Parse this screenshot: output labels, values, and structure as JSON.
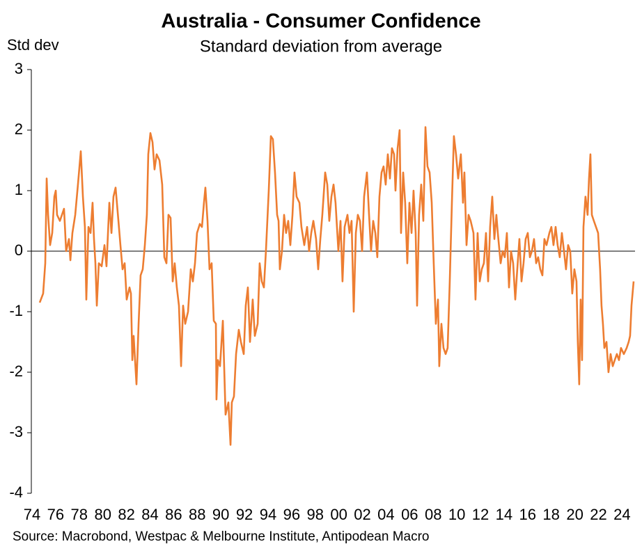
{
  "chart_data": {
    "type": "line",
    "title": "Australia - Consumer Confidence",
    "subtitle": "Standard deviation from average",
    "y_label": "Std dev",
    "source": "Source: Macrobond, Westpac & Melbourne Institute, Antipodean Macro",
    "xlim": [
      1973.94,
      2025.1
    ],
    "ylim": [
      -4,
      3
    ],
    "yticks": [
      -4,
      -3,
      -2,
      -1,
      0,
      1,
      2,
      3
    ],
    "xticks": [
      {
        "value": 1974,
        "label": "74"
      },
      {
        "value": 1976,
        "label": "76"
      },
      {
        "value": 1978,
        "label": "78"
      },
      {
        "value": 1980,
        "label": "80"
      },
      {
        "value": 1982,
        "label": "82"
      },
      {
        "value": 1984,
        "label": "84"
      },
      {
        "value": 1986,
        "label": "86"
      },
      {
        "value": 1988,
        "label": "88"
      },
      {
        "value": 1990,
        "label": "90"
      },
      {
        "value": 1992,
        "label": "92"
      },
      {
        "value": 1994,
        "label": "94"
      },
      {
        "value": 1996,
        "label": "96"
      },
      {
        "value": 1998,
        "label": "98"
      },
      {
        "value": 2000,
        "label": "00"
      },
      {
        "value": 2002,
        "label": "02"
      },
      {
        "value": 2004,
        "label": "04"
      },
      {
        "value": 2006,
        "label": "06"
      },
      {
        "value": 2008,
        "label": "08"
      },
      {
        "value": 2010,
        "label": "10"
      },
      {
        "value": 2012,
        "label": "12"
      },
      {
        "value": 2014,
        "label": "14"
      },
      {
        "value": 2016,
        "label": "16"
      },
      {
        "value": 2018,
        "label": "18"
      },
      {
        "value": 2020,
        "label": "20"
      },
      {
        "value": 2022,
        "label": "22"
      },
      {
        "value": 2024,
        "label": "24"
      }
    ],
    "color": "#ed7d31",
    "x": [
      1974.65,
      1974.94,
      1975.12,
      1975.24,
      1975.36,
      1975.53,
      1975.71,
      1975.89,
      1976.01,
      1976.12,
      1976.36,
      1976.71,
      1976.89,
      1977.13,
      1977.25,
      1977.42,
      1977.66,
      1977.89,
      1978.13,
      1978.31,
      1978.48,
      1978.6,
      1978.78,
      1978.96,
      1979.13,
      1979.25,
      1979.37,
      1979.49,
      1979.66,
      1979.9,
      1980.14,
      1980.31,
      1980.55,
      1980.73,
      1980.9,
      1981.08,
      1981.32,
      1981.49,
      1981.67,
      1981.85,
      1982.02,
      1982.26,
      1982.38,
      1982.5,
      1982.61,
      1982.85,
      1983.03,
      1983.2,
      1983.38,
      1983.56,
      1983.73,
      1983.85,
      1984.03,
      1984.21,
      1984.38,
      1984.56,
      1984.8,
      1985.03,
      1985.21,
      1985.39,
      1985.56,
      1985.74,
      1985.92,
      1986.09,
      1986.27,
      1986.45,
      1986.63,
      1986.8,
      1986.98,
      1987.22,
      1987.45,
      1987.63,
      1987.81,
      1987.98,
      1988.22,
      1988.4,
      1988.57,
      1988.69,
      1988.87,
      1989.04,
      1989.22,
      1989.4,
      1989.58,
      1989.63,
      1989.75,
      1989.93,
      1990.17,
      1990.28,
      1990.4,
      1990.64,
      1990.82,
      1990.93,
      1991.11,
      1991.29,
      1991.52,
      1991.7,
      1991.94,
      1992.11,
      1992.29,
      1992.47,
      1992.7,
      1992.88,
      1993.12,
      1993.29,
      1993.47,
      1993.65,
      1993.82,
      1994.06,
      1994.24,
      1994.41,
      1994.59,
      1994.77,
      1994.89,
      1995.0,
      1995.18,
      1995.36,
      1995.53,
      1995.71,
      1995.89,
      1996.07,
      1996.24,
      1996.42,
      1996.66,
      1996.83,
      1997.07,
      1997.31,
      1997.48,
      1997.66,
      1997.84,
      1998.07,
      1998.25,
      1998.43,
      1998.6,
      1998.84,
      1999.02,
      1999.19,
      1999.37,
      1999.55,
      1999.72,
      1999.96,
      2000.14,
      2000.31,
      2000.49,
      2000.73,
      2000.9,
      2001.08,
      2001.26,
      2001.44,
      2001.61,
      2001.79,
      2001.97,
      2002.14,
      2002.38,
      2002.56,
      2002.73,
      2002.91,
      2003.09,
      2003.26,
      2003.44,
      2003.62,
      2003.79,
      2003.97,
      2004.15,
      2004.33,
      2004.5,
      2004.68,
      2004.8,
      2004.98,
      2005.15,
      2005.27,
      2005.45,
      2005.62,
      2005.8,
      2005.98,
      2006.16,
      2006.33,
      2006.51,
      2006.63,
      2006.8,
      2006.98,
      2007.16,
      2007.34,
      2007.51,
      2007.69,
      2007.87,
      2008.04,
      2008.22,
      2008.4,
      2008.51,
      2008.69,
      2008.87,
      2009.05,
      2009.22,
      2009.4,
      2009.58,
      2009.75,
      2009.93,
      2010.11,
      2010.34,
      2010.52,
      2010.64,
      2010.82,
      2010.99,
      2011.17,
      2011.41,
      2011.58,
      2011.76,
      2011.94,
      2012.11,
      2012.29,
      2012.47,
      2012.65,
      2012.82,
      2013.0,
      2013.18,
      2013.35,
      2013.47,
      2013.71,
      2013.88,
      2014.06,
      2014.24,
      2014.42,
      2014.59,
      2014.77,
      2014.95,
      2015.12,
      2015.3,
      2015.48,
      2015.65,
      2015.83,
      2016.01,
      2016.19,
      2016.36,
      2016.54,
      2016.72,
      2016.89,
      2017.07,
      2017.25,
      2017.42,
      2017.6,
      2017.84,
      2018.01,
      2018.19,
      2018.37,
      2018.54,
      2018.72,
      2018.9,
      2019.08,
      2019.25,
      2019.43,
      2019.61,
      2019.78,
      2019.96,
      2020.14,
      2020.25,
      2020.37,
      2020.49,
      2020.61,
      2020.73,
      2020.9,
      2021.08,
      2021.2,
      2021.32,
      2021.44,
      2021.61,
      2021.79,
      2021.97,
      2022.14,
      2022.26,
      2022.38,
      2022.5,
      2022.68,
      2022.85,
      2023.03,
      2023.21,
      2023.38,
      2023.56,
      2023.74,
      2023.91,
      2024.15,
      2024.39,
      2024.56,
      2024.68,
      2024.8,
      2024.98
    ],
    "values": [
      -0.85,
      -0.7,
      -0.2,
      1.2,
      0.6,
      0.1,
      0.3,
      0.9,
      1.0,
      0.6,
      0.5,
      0.7,
      0.0,
      0.2,
      -0.15,
      0.3,
      0.6,
      1.1,
      1.65,
      0.9,
      0.4,
      -0.8,
      0.4,
      0.3,
      0.8,
      0.2,
      -0.2,
      -0.9,
      -0.2,
      -0.25,
      0.1,
      -0.25,
      0.8,
      0.3,
      0.9,
      1.05,
      0.5,
      0.1,
      -0.3,
      -0.2,
      -0.8,
      -0.6,
      -0.7,
      -1.8,
      -1.4,
      -2.2,
      -1.2,
      -0.4,
      -0.3,
      0.1,
      0.6,
      1.6,
      1.95,
      1.8,
      1.35,
      1.6,
      1.5,
      1.1,
      -0.1,
      -0.2,
      0.6,
      0.55,
      -0.5,
      -0.2,
      -0.6,
      -0.9,
      -1.9,
      -0.9,
      -1.2,
      -1.0,
      -0.3,
      -0.5,
      -0.2,
      0.3,
      0.45,
      0.4,
      0.8,
      1.05,
      0.5,
      -0.3,
      -0.2,
      -1.15,
      -1.2,
      -2.45,
      -1.8,
      -1.9,
      -1.15,
      -1.9,
      -2.7,
      -2.5,
      -3.2,
      -2.5,
      -2.4,
      -1.7,
      -1.3,
      -1.5,
      -1.7,
      -0.9,
      -0.6,
      -1.5,
      -0.8,
      -1.4,
      -1.2,
      -0.2,
      -0.5,
      -0.6,
      0.0,
      1.0,
      1.9,
      1.85,
      1.3,
      0.6,
      0.5,
      -0.3,
      0.0,
      0.6,
      0.3,
      0.5,
      0.1,
      0.6,
      1.3,
      0.9,
      0.8,
      0.4,
      0.1,
      0.4,
      0.0,
      0.3,
      0.5,
      0.2,
      -0.3,
      0.2,
      0.6,
      1.3,
      1.1,
      0.5,
      0.9,
      1.1,
      0.8,
      0.0,
      0.5,
      -0.5,
      0.4,
      0.6,
      0.3,
      0.5,
      -1.0,
      0.3,
      0.6,
      0.5,
      0.0,
      0.9,
      1.3,
      0.6,
      0.0,
      0.5,
      0.3,
      -0.1,
      0.9,
      1.3,
      1.4,
      1.1,
      1.6,
      1.2,
      1.7,
      1.6,
      1.0,
      1.7,
      2.0,
      0.3,
      1.3,
      0.8,
      -0.2,
      0.8,
      0.3,
      1.0,
      0.3,
      -0.9,
      0.6,
      1.1,
      0.5,
      2.05,
      1.4,
      1.3,
      0.8,
      -0.2,
      -1.2,
      -0.8,
      -1.9,
      -1.2,
      -1.6,
      -1.7,
      -1.6,
      -0.5,
      0.8,
      1.9,
      1.6,
      1.2,
      1.6,
      0.8,
      1.3,
      0.1,
      0.6,
      0.5,
      0.3,
      -0.8,
      0.3,
      -0.5,
      -0.3,
      -0.2,
      0.3,
      -0.5,
      0.4,
      0.9,
      0.2,
      0.6,
      0.3,
      -0.2,
      0.0,
      -0.1,
      0.3,
      -0.6,
      0.0,
      -0.2,
      -0.8,
      -0.3,
      0.2,
      -0.5,
      -0.2,
      0.2,
      0.3,
      -0.1,
      0.0,
      0.2,
      -0.2,
      -0.1,
      -0.3,
      -0.4,
      0.2,
      0.1,
      0.3,
      0.4,
      0.1,
      0.4,
      0.1,
      -0.1,
      0.3,
      0.0,
      -0.3,
      0.1,
      0.0,
      -0.7,
      -0.3,
      -0.5,
      -1.5,
      -2.2,
      -0.8,
      -1.8,
      0.4,
      0.9,
      0.6,
      1.2,
      1.6,
      0.6,
      0.5,
      0.4,
      0.3,
      -0.3,
      -0.9,
      -1.2,
      -1.6,
      -1.5,
      -2.0,
      -1.7,
      -1.9,
      -1.8,
      -1.7,
      -1.8,
      -1.6,
      -1.7,
      -1.6,
      -1.5,
      -1.4,
      -0.9,
      -0.5
    ]
  }
}
